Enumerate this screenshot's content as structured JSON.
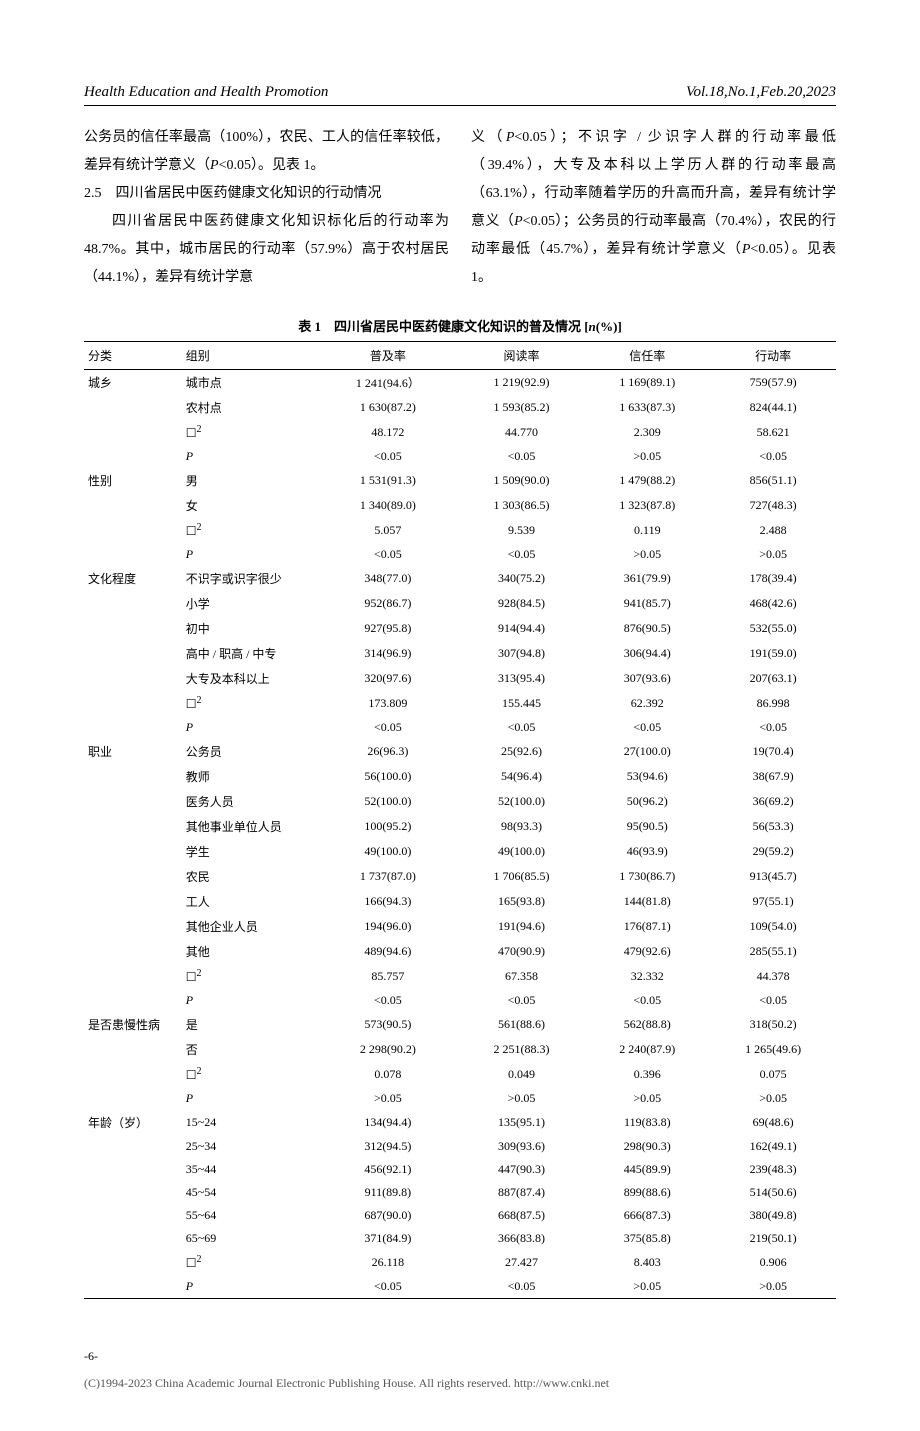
{
  "header": {
    "journal": "Health Education and Health Promotion",
    "issue": "Vol.18,No.1,Feb.20,2023"
  },
  "text": {
    "left_p1_prefix": "公务员的信任率最高（100%），农民、工人的信任率较低，差异有统计学意义（",
    "left_p1_p": "P",
    "left_p1_suffix": "<0.05）。见表 1。",
    "section_num": "2.5",
    "section_title": "四川省居民中医药健康文化知识的行动情况",
    "left_p2": "四川省居民中医药健康文化知识标化后的行动率为 48.7%。其中，城市居民的行动率（57.9%）高于农村居民（44.1%），差异有统计学意",
    "right_p1_1": "义（",
    "right_p1_2": "P",
    "right_p1_3": "<0.05）；不识字 / 少识字人群的行动率最低（39.4%），大专及本科以上学历人群的行动率最高（63.1%），行动率随着学历的升高而升高，差异有统计学意义（",
    "right_p1_4": "P",
    "right_p1_5": "<0.05）；公务员的行动率最高（70.4%），农民的行动率最低（45.7%），差异有统计学意义（",
    "right_p1_6": "P",
    "right_p1_7": "<0.05）。见表 1。"
  },
  "table": {
    "caption_prefix": "表 1　四川省居民中医药健康文化知识的普及情况 [",
    "caption_n": "n",
    "caption_suffix": "(%)]",
    "cols": [
      "分类",
      "组别",
      "普及率",
      "阅读率",
      "信任率",
      "行动率"
    ],
    "groups": [
      {
        "cat": "城乡",
        "rows": [
          {
            "label": "城市点",
            "c": [
              "1 241(94.6）",
              "1 219(92.9)",
              "1 169(89.1)",
              "759(57.9)"
            ]
          },
          {
            "label": "农村点",
            "c": [
              "1 630(87.2)",
              "1 593(85.2)",
              "1 633(87.3)",
              "824(44.1)"
            ]
          },
          {
            "label_html": "chi2",
            "c": [
              "48.172",
              "44.770",
              "2.309",
              "58.621"
            ]
          },
          {
            "label_html": "P",
            "c": [
              "<0.05",
              "<0.05",
              ">0.05",
              "<0.05"
            ]
          }
        ]
      },
      {
        "cat": "性别",
        "rows": [
          {
            "label": "男",
            "c": [
              "1 531(91.3)",
              "1 509(90.0)",
              "1 479(88.2)",
              "856(51.1)"
            ]
          },
          {
            "label": "女",
            "c": [
              "1 340(89.0)",
              "1 303(86.5)",
              "1 323(87.8)",
              "727(48.3)"
            ]
          },
          {
            "label_html": "chi2",
            "c": [
              "5.057",
              "9.539",
              "0.119",
              "2.488"
            ]
          },
          {
            "label_html": "P",
            "c": [
              "<0.05",
              "<0.05",
              ">0.05",
              ">0.05"
            ]
          }
        ]
      },
      {
        "cat": "文化程度",
        "rows": [
          {
            "label": "不识字或识字很少",
            "c": [
              "348(77.0)",
              "340(75.2)",
              "361(79.9)",
              "178(39.4)"
            ]
          },
          {
            "label": "小学",
            "c": [
              "952(86.7)",
              "928(84.5)",
              "941(85.7)",
              "468(42.6)"
            ]
          },
          {
            "label": "初中",
            "c": [
              "927(95.8)",
              "914(94.4)",
              "876(90.5)",
              "532(55.0)"
            ]
          },
          {
            "label": "高中 / 职高 / 中专",
            "c": [
              "314(96.9)",
              "307(94.8)",
              "306(94.4)",
              "191(59.0)"
            ]
          },
          {
            "label": "大专及本科以上",
            "c": [
              "320(97.6)",
              "313(95.4)",
              "307(93.6)",
              "207(63.1)"
            ]
          },
          {
            "label_html": "chi2",
            "c": [
              "173.809",
              "155.445",
              "62.392",
              "86.998"
            ]
          },
          {
            "label_html": "P",
            "c": [
              "<0.05",
              "<0.05",
              "<0.05",
              "<0.05"
            ]
          }
        ]
      },
      {
        "cat": "职业",
        "rows": [
          {
            "label": "公务员",
            "c": [
              "26(96.3)",
              "25(92.6)",
              "27(100.0)",
              "19(70.4)"
            ]
          },
          {
            "label": "教师",
            "c": [
              "56(100.0)",
              "54(96.4)",
              "53(94.6)",
              "38(67.9)"
            ]
          },
          {
            "label": "医务人员",
            "c": [
              "52(100.0)",
              "52(100.0)",
              "50(96.2)",
              "36(69.2)"
            ]
          },
          {
            "label": "其他事业单位人员",
            "c": [
              "100(95.2)",
              "98(93.3)",
              "95(90.5)",
              "56(53.3)"
            ]
          },
          {
            "label": "学生",
            "c": [
              "49(100.0)",
              "49(100.0)",
              "46(93.9)",
              "29(59.2)"
            ]
          },
          {
            "label": "农民",
            "c": [
              "1 737(87.0)",
              "1 706(85.5)",
              "1 730(86.7)",
              "913(45.7)"
            ]
          },
          {
            "label": "工人",
            "c": [
              "166(94.3)",
              "165(93.8)",
              "144(81.8)",
              "97(55.1)"
            ]
          },
          {
            "label": "其他企业人员",
            "c": [
              "194(96.0)",
              "191(94.6)",
              "176(87.1)",
              "109(54.0)"
            ]
          },
          {
            "label": "其他",
            "c": [
              "489(94.6)",
              "470(90.9)",
              "479(92.6)",
              "285(55.1)"
            ]
          },
          {
            "label_html": "chi2",
            "c": [
              "85.757",
              "67.358",
              "32.332",
              "44.378"
            ]
          },
          {
            "label_html": "P",
            "c": [
              "<0.05",
              "<0.05",
              "<0.05",
              "<0.05"
            ]
          }
        ]
      },
      {
        "cat": "是否患慢性病",
        "rows": [
          {
            "label": "是",
            "c": [
              "573(90.5)",
              "561(88.6)",
              "562(88.8)",
              "318(50.2)"
            ]
          },
          {
            "label": "否",
            "c": [
              "2 298(90.2)",
              "2 251(88.3)",
              "2 240(87.9)",
              "1 265(49.6)"
            ]
          },
          {
            "label_html": "chi2",
            "c": [
              "0.078",
              "0.049",
              "0.396",
              "0.075"
            ]
          },
          {
            "label_html": "P",
            "c": [
              ">0.05",
              ">0.05",
              ">0.05",
              ">0.05"
            ]
          }
        ]
      },
      {
        "cat": "年龄（岁）",
        "rows": [
          {
            "label": "15~24",
            "c": [
              "134(94.4)",
              "135(95.1)",
              "119(83.8)",
              "69(48.6)"
            ]
          },
          {
            "label": "25~34",
            "c": [
              "312(94.5)",
              "309(93.6)",
              "298(90.3)",
              "162(49.1)"
            ]
          },
          {
            "label": "35~44",
            "c": [
              "456(92.1)",
              "447(90.3)",
              "445(89.9)",
              "239(48.3)"
            ]
          },
          {
            "label": "45~54",
            "c": [
              "911(89.8)",
              "887(87.4)",
              "899(88.6)",
              "514(50.6)"
            ]
          },
          {
            "label": "55~64",
            "c": [
              "687(90.0)",
              "668(87.5)",
              "666(87.3)",
              "380(49.8)"
            ]
          },
          {
            "label": "65~69",
            "c": [
              "371(84.9)",
              "366(83.8)",
              "375(85.8)",
              "219(50.1)"
            ]
          },
          {
            "label_html": "chi2",
            "c": [
              "26.118",
              "27.427",
              "8.403",
              "0.906"
            ]
          },
          {
            "label_html": "P",
            "c": [
              "<0.05",
              "<0.05",
              ">0.05",
              ">0.05"
            ]
          }
        ]
      }
    ]
  },
  "footer": {
    "page": "-6-",
    "copyright": "(C)1994-2023 China Academic Journal Electronic Publishing House. All rights reserved.    http://www.cnki.net"
  }
}
